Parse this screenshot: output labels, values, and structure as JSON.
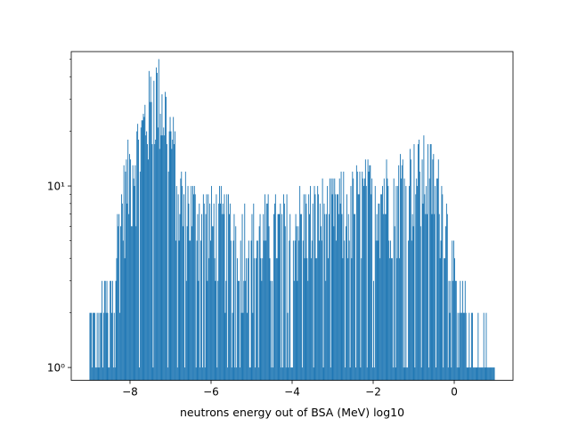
{
  "chart_data": {
    "type": "bar",
    "title": "",
    "xlabel": "neutrons energy out of BSA (MeV) log10",
    "ylabel": "",
    "x_scale": "linear",
    "y_scale": "log",
    "xlim": [
      -9.45,
      1.45
    ],
    "ylim": [
      0.85,
      55
    ],
    "x_ticks": [
      -8,
      -6,
      -4,
      -2,
      0
    ],
    "x_tick_labels": [
      "−8",
      "−6",
      "−4",
      "−2",
      "0"
    ],
    "y_ticks": [
      1,
      10
    ],
    "y_tick_labels": [
      "10⁰",
      "10¹"
    ],
    "bar_color": "#1f77b4",
    "bins": {
      "start": -9.0,
      "end": 1.0,
      "count": 500
    },
    "envelope": [
      [
        -9.0,
        2
      ],
      [
        -8.9,
        1.3
      ],
      [
        -8.8,
        1.1
      ],
      [
        -8.7,
        2.0
      ],
      [
        -8.6,
        2.2
      ],
      [
        -8.5,
        2.8
      ],
      [
        -8.4,
        3.0
      ],
      [
        -8.3,
        5.5
      ],
      [
        -8.2,
        8.0
      ],
      [
        -8.1,
        10.5
      ],
      [
        -8.0,
        13.0
      ],
      [
        -7.9,
        15.0
      ],
      [
        -7.8,
        17.0
      ],
      [
        -7.7,
        20.0
      ],
      [
        -7.6,
        26.0
      ],
      [
        -7.5,
        30.0
      ],
      [
        -7.4,
        36.0
      ],
      [
        -7.3,
        35.0
      ],
      [
        -7.2,
        30.0
      ],
      [
        -7.1,
        26.0
      ],
      [
        -7.0,
        20.0
      ],
      [
        -6.9,
        15.0
      ],
      [
        -6.8,
        10.0
      ],
      [
        -6.6,
        8.0
      ],
      [
        -6.4,
        7.5
      ],
      [
        -6.0,
        6.5
      ],
      [
        -5.5,
        6.0
      ],
      [
        -5.0,
        5.5
      ],
      [
        -4.5,
        5.8
      ],
      [
        -4.0,
        6.5
      ],
      [
        -3.5,
        7.0
      ],
      [
        -3.0,
        7.5
      ],
      [
        -2.5,
        8.5
      ],
      [
        -2.0,
        9.5
      ],
      [
        -1.5,
        10.5
      ],
      [
        -1.0,
        12.0
      ],
      [
        -0.7,
        12.5
      ],
      [
        -0.5,
        11.0
      ],
      [
        -0.3,
        9.0
      ],
      [
        -0.2,
        6.5
      ],
      [
        -0.1,
        4.5
      ],
      [
        0.0,
        3.0
      ],
      [
        0.2,
        2.0
      ],
      [
        0.4,
        1.6
      ],
      [
        0.6,
        1.3
      ],
      [
        0.8,
        1.1
      ],
      [
        1.0,
        1.0
      ]
    ]
  }
}
